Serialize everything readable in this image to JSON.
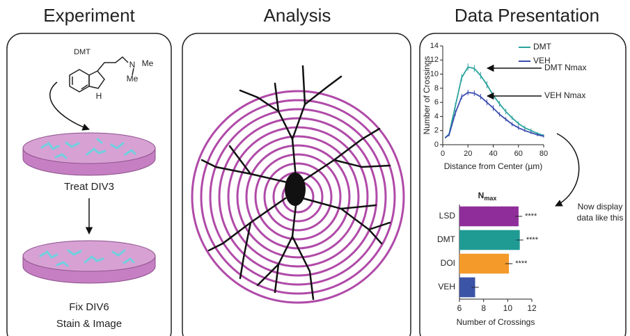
{
  "experiment": {
    "title": "Experiment",
    "molecule": {
      "name": "DMT",
      "amine": "N",
      "methyl_1": "Me",
      "methyl_2": "Me",
      "indole_nh": "H"
    },
    "step_1": "Treat DIV3",
    "step_2_line_1": "Fix DIV6",
    "step_2_line_2": "Stain & Image"
  },
  "analysis": {
    "title": "Analysis"
  },
  "data_presentation": {
    "title": "Data Presentation",
    "note_line_1": "Now display",
    "note_line_2": "data like this"
  },
  "chart_data": [
    {
      "type": "line",
      "xlabel": "Distance from Center (µm)",
      "ylabel": "Number of Crossings",
      "x": [
        2,
        5,
        10,
        15,
        20,
        25,
        30,
        35,
        40,
        45,
        50,
        55,
        60,
        65,
        70,
        75,
        80
      ],
      "series": [
        {
          "name": "DMT",
          "color": "#2aa39b",
          "values": [
            1.0,
            1.5,
            5.5,
            9.5,
            11.0,
            10.8,
            9.8,
            8.5,
            7.0,
            5.8,
            4.7,
            3.8,
            3.0,
            2.4,
            2.0,
            1.6,
            1.3
          ],
          "errors": [
            0.1,
            0.2,
            0.4,
            0.5,
            0.5,
            0.5,
            0.5,
            0.5,
            0.4,
            0.4,
            0.4,
            0.3,
            0.3,
            0.3,
            0.3,
            0.2,
            0.2
          ]
        },
        {
          "name": "VEH",
          "color": "#3a4db0",
          "values": [
            1.0,
            1.4,
            4.5,
            6.8,
            7.4,
            7.3,
            6.8,
            6.0,
            5.2,
            4.3,
            3.6,
            2.9,
            2.4,
            2.0,
            1.7,
            1.4,
            1.2
          ],
          "errors": [
            0.1,
            0.2,
            0.4,
            0.4,
            0.4,
            0.4,
            0.4,
            0.4,
            0.4,
            0.3,
            0.3,
            0.3,
            0.3,
            0.2,
            0.2,
            0.2,
            0.2
          ]
        }
      ],
      "xlim": [
        0,
        80
      ],
      "ylim": [
        0,
        14
      ],
      "xticks": [
        0,
        20,
        40,
        60,
        80
      ],
      "yticks": [
        0,
        2,
        4,
        6,
        8,
        10,
        12,
        14
      ],
      "legend": "upper right",
      "annotations": [
        "DMT Nmax",
        "VEH Nmax"
      ]
    },
    {
      "type": "bar",
      "orientation": "horizontal",
      "title": {
        "main": "N",
        "subscript": "max"
      },
      "xlabel": "Number of Crossings",
      "categories": [
        "LSD",
        "DMT",
        "DOI",
        "VEH"
      ],
      "values": [
        10.9,
        11.0,
        10.1,
        7.3
      ],
      "errors": [
        0.3,
        0.3,
        0.3,
        0.3
      ],
      "colors": [
        "#8f2e9a",
        "#1f9b94",
        "#f39a2b",
        "#3c54a6"
      ],
      "significance": [
        "****",
        "****",
        "****",
        null
      ],
      "xlim": [
        6,
        12
      ],
      "xticks": [
        6,
        8,
        10,
        12
      ]
    }
  ]
}
